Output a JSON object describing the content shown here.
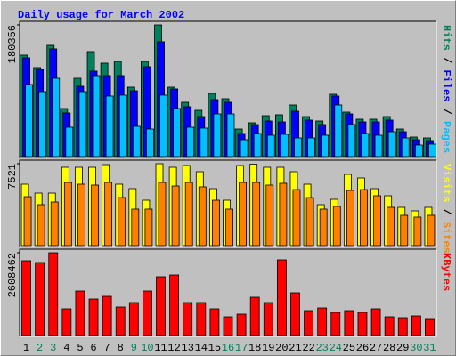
{
  "chart_data": {
    "type": "bar",
    "title": "Daily usage for March 2002",
    "categories": [
      "1",
      "2",
      "3",
      "4",
      "5",
      "6",
      "7",
      "8",
      "9",
      "10",
      "11",
      "12",
      "13",
      "14",
      "15",
      "16",
      "17",
      "18",
      "19",
      "20",
      "21",
      "22",
      "23",
      "24",
      "25",
      "26",
      "27",
      "28",
      "29",
      "30",
      "31"
    ],
    "category_colors": [
      "#000000",
      "#00805c",
      "#00805c",
      "#000000",
      "#000000",
      "#000000",
      "#000000",
      "#000000",
      "#00805c",
      "#00805c",
      "#000000",
      "#000000",
      "#000000",
      "#000000",
      "#000000",
      "#00805c",
      "#00805c",
      "#000000",
      "#000000",
      "#000000",
      "#000000",
      "#000000",
      "#00805c",
      "#00805c",
      "#000000",
      "#000000",
      "#000000",
      "#000000",
      "#000000",
      "#00805c",
      "#00805c"
    ],
    "legend_separator": " / ",
    "panels": [
      {
        "ylim": [
          0,
          180356
        ],
        "yticks": [
          180356
        ],
        "series": [
          {
            "name": "Hits",
            "color": "#00805c",
            "values": [
              138966,
              121900,
              152375,
              65826,
              107272,
              143842,
              127995,
              130433,
              95082,
              130433,
              180356,
              95082,
              74359,
              63388,
              86549,
              79235,
              37789,
              46322,
              56074,
              57293,
              70702,
              54855,
              48760,
              85330,
              60950,
              51198,
              51198,
              54855,
              37789,
              26818,
              25599
            ]
          },
          {
            "name": "Files",
            "color": "#0000ff",
            "values": [
              135309,
              119462,
              147499,
              59731,
              96301,
              117024,
              110929,
              110929,
              90206,
              123119,
              157251,
              92644,
              68264,
              54855,
              78016,
              74359,
              31694,
              43884,
              48760,
              47541,
              62169,
              49979,
              43884,
              82892,
              58512,
              47541,
              47541,
              49979,
              34132,
              23161,
              21942
            ]
          },
          {
            "name": "Pages",
            "color": "#00c0ff",
            "values": [
              98739,
              88987,
              107272,
              40227,
              88987,
              110929,
              82892,
              84111,
              41446,
              37789,
              84111,
              65826,
              40227,
              39008,
              58512,
              58512,
              23161,
              31694,
              29256,
              30475,
              25599,
              25599,
              29256,
              70702,
              43884,
              31694,
              29256,
              34132,
              25599,
              15847,
              17066
            ]
          }
        ]
      },
      {
        "ylim": [
          0,
          7521
        ],
        "yticks": [
          7521
        ],
        "series": [
          {
            "name": "Visits",
            "color": "#ffff00",
            "values": [
              5641,
              4823,
              4823,
              7194,
              7194,
              7194,
              7439,
              5641,
              5232,
              4169,
              7521,
              7194,
              7358,
              6785,
              5232,
              4169,
              7358,
              7480,
              7194,
              7194,
              6785,
              5641,
              3761,
              4251,
              6540,
              6213,
              5232,
              4578,
              3515,
              3188,
              3515
            ]
          },
          {
            "name": "Sites",
            "color": "#ff8000",
            "values": [
              4496,
              3761,
              4006,
              5804,
              5641,
              5559,
              5804,
              4415,
              3352,
              3352,
              5804,
              5477,
              5804,
              5396,
              4169,
              3352,
              5804,
              5804,
              5559,
              5723,
              5150,
              4415,
              3352,
              3597,
              5069,
              5150,
              4578,
              3515,
              2780,
              2616,
              2780
            ]
          }
        ]
      },
      {
        "ylim": [
          0,
          2608462
        ],
        "yticks": [
          2608462
        ],
        "series": [
          {
            "name": "KBytes",
            "color": "#ff0000",
            "values": [
              2356032,
              2299936,
              2608462,
              841440,
              1402400,
              1149968,
              1234112,
              897536,
              1037776,
              1402400,
              1851168,
              1907264,
              1037776,
              1037776,
              841440,
              589008,
              673152,
              1206064,
              1037776,
              2384080,
              1346304,
              785344,
              869488,
              729248,
              785344,
              729248,
              841440,
              589008,
              560960,
              617056,
              532912
            ]
          }
        ]
      }
    ]
  }
}
